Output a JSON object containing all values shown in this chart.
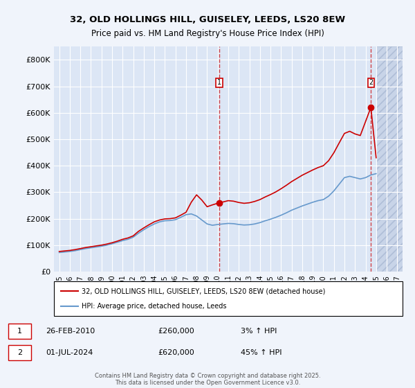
{
  "title1": "32, OLD HOLLINGS HILL, GUISELEY, LEEDS, LS20 8EW",
  "title2": "Price paid vs. HM Land Registry's House Price Index (HPI)",
  "ylabel": "",
  "background_color": "#e8eef8",
  "plot_bg_color": "#dce6f5",
  "hatch_color": "#c8d4e8",
  "grid_color": "#ffffff",
  "red_line_color": "#cc0000",
  "blue_line_color": "#6699cc",
  "sale1_date": 2010.15,
  "sale1_price": 260000,
  "sale2_date": 2024.5,
  "sale2_price": 620000,
  "xmin": 1994.5,
  "xmax": 2027.5,
  "ymin": 0,
  "ymax": 850000,
  "yticks": [
    0,
    100000,
    200000,
    300000,
    400000,
    500000,
    600000,
    700000,
    800000
  ],
  "ytick_labels": [
    "£0",
    "£100K",
    "£200K",
    "£300K",
    "£400K",
    "£500K",
    "£600K",
    "£700K",
    "£800K"
  ],
  "xticks": [
    1995,
    1996,
    1997,
    1998,
    1999,
    2000,
    2001,
    2002,
    2003,
    2004,
    2005,
    2006,
    2007,
    2008,
    2009,
    2010,
    2011,
    2012,
    2013,
    2014,
    2015,
    2016,
    2017,
    2018,
    2019,
    2020,
    2021,
    2022,
    2023,
    2024,
    2025,
    2026,
    2027
  ],
  "legend_line1": "32, OLD HOLLINGS HILL, GUISELEY, LEEDS, LS20 8EW (detached house)",
  "legend_line2": "HPI: Average price, detached house, Leeds",
  "note1_index": "1",
  "note1_date": "26-FEB-2010",
  "note1_price": "£260,000",
  "note1_hpi": "3% ↑ HPI",
  "note2_index": "2",
  "note2_date": "01-JUL-2024",
  "note2_price": "£620,000",
  "note2_hpi": "45% ↑ HPI",
  "footer": "Contains HM Land Registry data © Crown copyright and database right 2025.\nThis data is licensed under the Open Government Licence v3.0.",
  "hpi_years": [
    1995,
    1995.5,
    1996,
    1996.5,
    1997,
    1997.5,
    1998,
    1998.5,
    1999,
    1999.5,
    2000,
    2000.5,
    2001,
    2001.5,
    2002,
    2002.5,
    2003,
    2003.5,
    2004,
    2004.5,
    2005,
    2005.5,
    2006,
    2006.5,
    2007,
    2007.5,
    2008,
    2008.5,
    2009,
    2009.5,
    2010,
    2010.5,
    2011,
    2011.5,
    2012,
    2012.5,
    2013,
    2013.5,
    2014,
    2014.5,
    2015,
    2015.5,
    2016,
    2016.5,
    2017,
    2017.5,
    2018,
    2018.5,
    2019,
    2019.5,
    2020,
    2020.5,
    2021,
    2021.5,
    2022,
    2022.5,
    2023,
    2023.5,
    2024,
    2024.5,
    2025
  ],
  "hpi_values": [
    72000,
    74000,
    76000,
    79000,
    83000,
    87000,
    90000,
    93000,
    96000,
    100000,
    105000,
    111000,
    117000,
    122000,
    130000,
    145000,
    158000,
    170000,
    180000,
    188000,
    192000,
    193000,
    196000,
    205000,
    215000,
    218000,
    210000,
    195000,
    180000,
    175000,
    178000,
    180000,
    182000,
    181000,
    178000,
    176000,
    177000,
    180000,
    185000,
    192000,
    198000,
    205000,
    213000,
    222000,
    232000,
    240000,
    248000,
    255000,
    262000,
    268000,
    272000,
    285000,
    305000,
    330000,
    355000,
    360000,
    355000,
    350000,
    355000,
    365000,
    370000
  ],
  "price_years": [
    1995.0,
    1995.5,
    1996.0,
    1996.5,
    1997.0,
    1997.5,
    1998.0,
    1998.5,
    1999.0,
    1999.5,
    2000.0,
    2000.5,
    2001.0,
    2001.5,
    2002.0,
    2002.5,
    2003.0,
    2003.5,
    2004.0,
    2004.5,
    2005.0,
    2005.5,
    2006.0,
    2006.5,
    2007.0,
    2007.5,
    2008.0,
    2008.5,
    2009.0,
    2009.5,
    2010.15,
    2010.5,
    2011.0,
    2011.5,
    2012.0,
    2012.5,
    2013.0,
    2013.5,
    2014.0,
    2014.5,
    2015.0,
    2015.5,
    2016.0,
    2016.5,
    2017.0,
    2017.5,
    2018.0,
    2018.5,
    2019.0,
    2019.5,
    2020.0,
    2020.5,
    2021.0,
    2021.5,
    2022.0,
    2022.5,
    2023.0,
    2023.5,
    2024.5,
    2025.0
  ],
  "price_values": [
    76000,
    78000,
    80000,
    83000,
    87000,
    91000,
    94000,
    97000,
    100000,
    104000,
    109000,
    115000,
    122000,
    127000,
    135000,
    152000,
    165000,
    177000,
    188000,
    195000,
    199000,
    200000,
    203000,
    213000,
    224000,
    262000,
    290000,
    270000,
    245000,
    252000,
    260000,
    263000,
    268000,
    266000,
    261000,
    258000,
    260000,
    265000,
    272000,
    282000,
    291000,
    301000,
    313000,
    326000,
    340000,
    352000,
    364000,
    374000,
    384000,
    393000,
    400000,
    419000,
    449000,
    486000,
    522000,
    530000,
    520000,
    514000,
    620000,
    430000
  ]
}
